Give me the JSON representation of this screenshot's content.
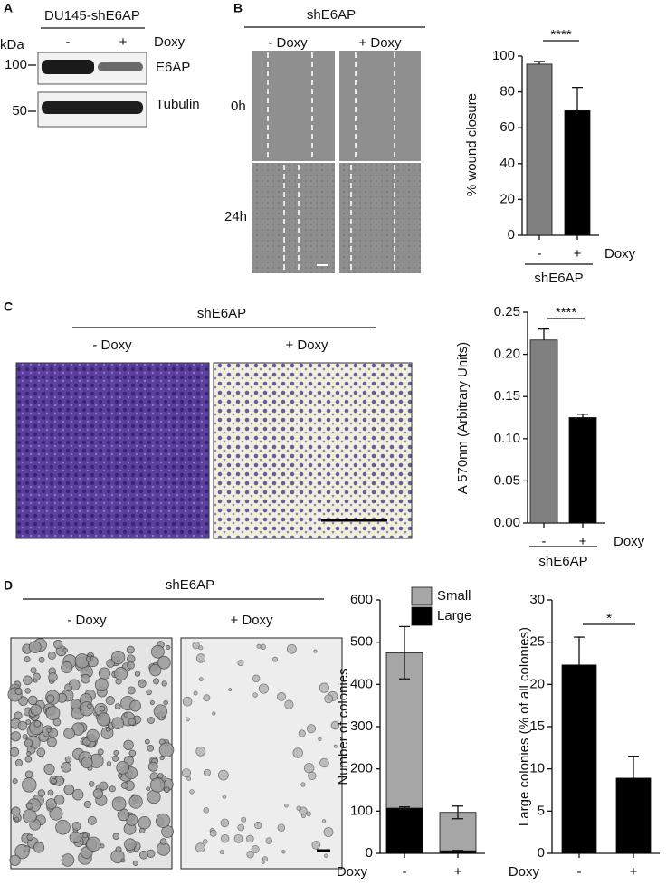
{
  "panel_labels": [
    "A",
    "B",
    "C",
    "D"
  ],
  "blot": {
    "title": "DU145-shE6AP",
    "kda": "kDa",
    "lanes": [
      "-",
      "+"
    ],
    "treatment": "Doxy",
    "markers": [
      100,
      50
    ],
    "bands": [
      "E6AP",
      "Tubulin"
    ]
  },
  "wound": {
    "group": "shE6AP",
    "conditions": [
      "-  Doxy",
      "+  Doxy"
    ],
    "times": [
      "0h",
      "24h"
    ]
  },
  "invasion": {
    "group": "shE6AP",
    "conditions": [
      "-  Doxy",
      "+  Doxy"
    ]
  },
  "colonies": {
    "group": "shE6AP",
    "conditions": [
      "-  Doxy",
      "+  Doxy"
    ]
  },
  "chart_data": [
    {
      "type": "bar",
      "categories": [
        "-",
        "+"
      ],
      "values": [
        95.5,
        69.5
      ],
      "errors": [
        1.5,
        13
      ],
      "colors": [
        "#808080",
        "#000000"
      ],
      "y_label": "% wound closure",
      "x_label": "Doxy",
      "group_label": "shE6AP",
      "significance": "****",
      "ylim": [
        0,
        100
      ],
      "yticks": [
        0,
        20,
        40,
        60,
        80,
        100
      ]
    },
    {
      "type": "bar",
      "categories": [
        "-",
        "+"
      ],
      "values": [
        0.217,
        0.125
      ],
      "errors": [
        0.013,
        0.004
      ],
      "colors": [
        "#808080",
        "#000000"
      ],
      "y_label": "A 570nm (Arbitrary Units)",
      "x_label": "Doxy",
      "group_label": "shE6AP",
      "significance": "****",
      "ylim": [
        0,
        0.25
      ],
      "yticks": [
        {
          "value": 0,
          "label": "0.00"
        },
        0.05,
        {
          "value": 0.1,
          "label": "0.10"
        },
        0.15,
        {
          "value": 0.2,
          "label": "0.20"
        },
        0.25
      ]
    },
    {
      "type": "bar",
      "categories": [
        "-",
        "+"
      ],
      "y_label": "Number of colonies",
      "x_label": "Doxy",
      "series": [
        {
          "name": "Large",
          "color": "#000000",
          "values": [
            107,
            6
          ],
          "errors": [
            3,
            1
          ]
        },
        {
          "name": "Small",
          "color": "#a6a6a6",
          "values": [
            368,
            91
          ],
          "errors": [
            62,
            15
          ]
        }
      ],
      "ylim": [
        0,
        600
      ],
      "yticks": [
        0,
        100,
        200,
        300,
        400,
        500,
        600
      ]
    },
    {
      "type": "bar",
      "categories": [
        "-",
        "+"
      ],
      "values": [
        22.3,
        8.9
      ],
      "errors": [
        3.3,
        2.6
      ],
      "colors": [
        "#000000",
        "#000000"
      ],
      "y_label": "Large colonies (% of all colonies)",
      "x_label": "Doxy",
      "significance": "*",
      "ylim": [
        0,
        30
      ],
      "yticks": [
        0,
        5,
        10,
        15,
        20,
        25,
        30
      ]
    }
  ]
}
